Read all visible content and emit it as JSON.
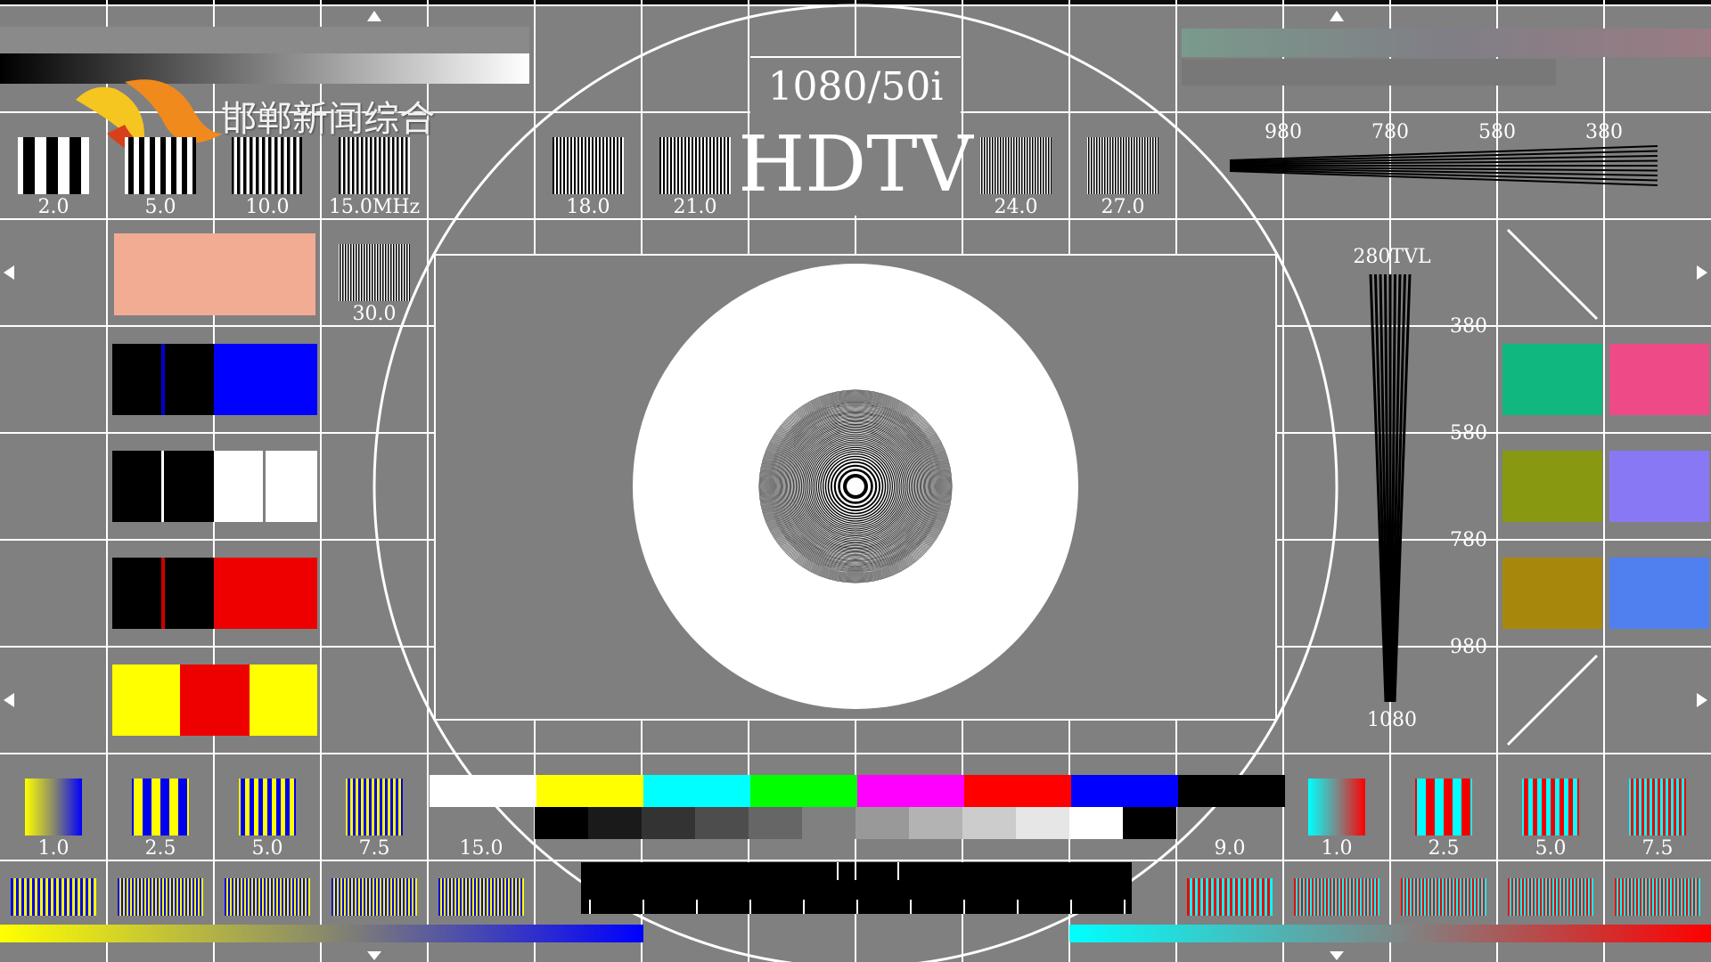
{
  "logo": {
    "text": "邯郸新闻综合",
    "colors": {
      "swoosh_orange": "#f08a1c",
      "swoosh_yellow": "#f6c620",
      "swoosh_red": "#d8401c"
    }
  },
  "header": {
    "format": "1080/50i",
    "title": "HDTV"
  },
  "top_freq_labels": {
    "f1": "2.0",
    "f2": "5.0",
    "f3": "10.0",
    "f4": "15.0MHz",
    "f5": "18.0",
    "f6": "21.0",
    "f7": "24.0",
    "f8": "27.0",
    "f9": "30.0"
  },
  "horizontal_resolution_labels": {
    "r1": "980",
    "r2": "780",
    "r3": "580",
    "r4": "380"
  },
  "vertical_resolution": {
    "top": "280TVL",
    "bottom": "1080",
    "r1": "380",
    "r2": "580",
    "r3": "780",
    "r4": "980"
  },
  "bottom_left_labels": {
    "l1": "1.0",
    "l2": "2.5",
    "l3": "5.0",
    "l4": "7.5",
    "l5": "15.0"
  },
  "bottom_right_labels": {
    "l0": "9.0",
    "l1": "1.0",
    "l2": "2.5",
    "l3": "5.0",
    "l4": "7.5"
  },
  "colors": {
    "background": "#808080",
    "skin_tone": "#f3ac94",
    "color_bars": [
      "#ffffff",
      "#ffff00",
      "#00ffff",
      "#00ff00",
      "#ff00ff",
      "#ff0000",
      "#0000ff",
      "#000000"
    ],
    "gray_steps": [
      "#000000",
      "#1a1a1a",
      "#333333",
      "#4d4d4d",
      "#666666",
      "#808080",
      "#999999",
      "#b3b3b3",
      "#cccccc",
      "#e6e6e6",
      "#ffffff",
      "#000000"
    ],
    "right_swatches": [
      "#10b880",
      "#ee4a88",
      "#889810",
      "#8878f4",
      "#a8880c",
      "#5080f0"
    ]
  }
}
